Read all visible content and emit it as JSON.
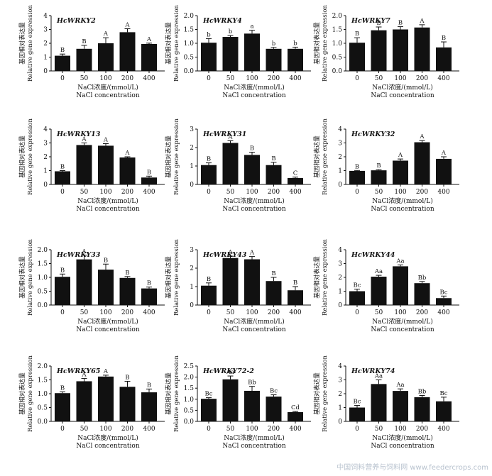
{
  "ylabel_cn": "基因相对表达量",
  "ylabel_en": "Relative gene expression",
  "xlabel_cn": "NaCl浓度/(mmol/L)",
  "xlabel_en": "NaCl concentration",
  "watermark": "中国饲料营养与饲料网 www.feedercrops.com",
  "colors": {
    "bar": "#111111",
    "axis": "#111111",
    "background": "#ffffff"
  },
  "chart_data": [
    {
      "type": "bar",
      "title": "HcWRKY2",
      "categories": [
        "0",
        "50",
        "100",
        "200",
        "400"
      ],
      "values": [
        1.1,
        1.6,
        2.0,
        2.8,
        1.95
      ],
      "errors": [
        0.12,
        0.25,
        0.4,
        0.25,
        0.06
      ],
      "labels": [
        "B",
        "B",
        "A",
        "A",
        "A"
      ],
      "ylim": [
        0,
        4
      ],
      "yticks": [
        0,
        1,
        2,
        3,
        4
      ]
    },
    {
      "type": "bar",
      "title": "HcWRKY4",
      "categories": [
        "0",
        "50",
        "100",
        "200",
        "400"
      ],
      "values": [
        1.02,
        1.23,
        1.35,
        0.8,
        0.8
      ],
      "errors": [
        0.15,
        0.05,
        0.12,
        0.05,
        0.06
      ],
      "labels": [
        "b",
        "b",
        "a",
        "b",
        "b"
      ],
      "ylim": [
        0,
        2
      ],
      "yticks": [
        0,
        0.5,
        1.0,
        1.5,
        2.0
      ]
    },
    {
      "type": "bar",
      "title": "HcWRKY7",
      "categories": [
        "0",
        "50",
        "100",
        "200",
        "400"
      ],
      "values": [
        1.02,
        1.47,
        1.5,
        1.57,
        0.85
      ],
      "errors": [
        0.18,
        0.12,
        0.1,
        0.1,
        0.2
      ],
      "labels": [
        "B",
        "B",
        "B",
        "A",
        "B"
      ],
      "ylim": [
        0,
        2
      ],
      "yticks": [
        0,
        0.5,
        1.0,
        1.5,
        2.0
      ]
    },
    {
      "type": "bar",
      "title": "HcWRKY13",
      "categories": [
        "0",
        "50",
        "100",
        "200",
        "400"
      ],
      "values": [
        0.95,
        2.85,
        2.8,
        1.95,
        0.5
      ],
      "errors": [
        0.05,
        0.15,
        0.15,
        0.05,
        0.1
      ],
      "labels": [
        "B",
        "A",
        "A",
        "A",
        "B"
      ],
      "ylim": [
        0,
        4
      ],
      "yticks": [
        0,
        1,
        2,
        3,
        4
      ]
    },
    {
      "type": "bar",
      "title": "HcWRKY31",
      "categories": [
        "0",
        "50",
        "100",
        "200",
        "400"
      ],
      "values": [
        1.05,
        2.25,
        1.6,
        1.05,
        0.35
      ],
      "errors": [
        0.12,
        0.12,
        0.15,
        0.15,
        0.05
      ],
      "labels": [
        "B",
        "A",
        "B",
        "B",
        "C"
      ],
      "ylim": [
        0,
        3
      ],
      "yticks": [
        0,
        1,
        2,
        3
      ]
    },
    {
      "type": "bar",
      "title": "HcWRKY32",
      "categories": [
        "0",
        "50",
        "100",
        "200",
        "400"
      ],
      "values": [
        0.98,
        1.02,
        1.72,
        3.05,
        1.85
      ],
      "errors": [
        0.03,
        0.05,
        0.12,
        0.12,
        0.15
      ],
      "labels": [
        "B",
        "B",
        "A",
        "A",
        "A"
      ],
      "ylim": [
        0,
        4
      ],
      "yticks": [
        0,
        1,
        2,
        3,
        4
      ]
    },
    {
      "type": "bar",
      "title": "HcWRKY33",
      "categories": [
        "0",
        "50",
        "100",
        "200",
        "400"
      ],
      "values": [
        1.02,
        1.65,
        1.28,
        0.98,
        0.6
      ],
      "errors": [
        0.1,
        0.15,
        0.2,
        0.05,
        0.05
      ],
      "labels": [
        "B",
        "A",
        "B",
        "B",
        "B"
      ],
      "ylim": [
        0,
        2
      ],
      "yticks": [
        0,
        0.5,
        1.0,
        1.5,
        2.0
      ]
    },
    {
      "type": "bar",
      "title": "HcWRKY43",
      "categories": [
        "0",
        "50",
        "100",
        "200",
        "400"
      ],
      "values": [
        1.05,
        2.55,
        2.48,
        1.3,
        0.8
      ],
      "errors": [
        0.15,
        0.1,
        0.15,
        0.2,
        0.2
      ],
      "labels": [
        "B",
        "A",
        "A",
        "B",
        "B"
      ],
      "ylim": [
        0,
        3
      ],
      "yticks": [
        0,
        1,
        2,
        3
      ]
    },
    {
      "type": "bar",
      "title": "HcWRKY44",
      "categories": [
        "0",
        "50",
        "100",
        "200",
        "400"
      ],
      "values": [
        1.0,
        2.05,
        2.8,
        1.58,
        0.5
      ],
      "errors": [
        0.15,
        0.1,
        0.1,
        0.12,
        0.15
      ],
      "labels": [
        "Bc",
        "Aa",
        "Aa",
        "Bb",
        "Bc"
      ],
      "ylim": [
        0,
        4
      ],
      "yticks": [
        0,
        1,
        2,
        3,
        4
      ]
    },
    {
      "type": "bar",
      "title": "HcWRKY65",
      "categories": [
        "0",
        "50",
        "100",
        "200",
        "400"
      ],
      "values": [
        1.02,
        1.45,
        1.62,
        1.25,
        1.05
      ],
      "errors": [
        0.05,
        0.1,
        0.05,
        0.2,
        0.12
      ],
      "labels": [
        "B",
        "A",
        "A",
        "B",
        "B"
      ],
      "ylim": [
        0,
        2
      ],
      "yticks": [
        0,
        0.5,
        1.0,
        1.5,
        2.0
      ]
    },
    {
      "type": "bar",
      "title": "HcWRKY72-2",
      "categories": [
        "0",
        "50",
        "100",
        "200",
        "400"
      ],
      "values": [
        1.02,
        1.9,
        1.38,
        1.12,
        0.42
      ],
      "errors": [
        0.05,
        0.15,
        0.2,
        0.08,
        0.03
      ],
      "labels": [
        "Bc",
        "Aa",
        "Bb",
        "Bc",
        "Cd"
      ],
      "ylim": [
        0,
        2.5
      ],
      "yticks": [
        0,
        0.5,
        1.0,
        1.5,
        2.0,
        2.5
      ]
    },
    {
      "type": "bar",
      "title": "HcWRKY74",
      "categories": [
        "0",
        "50",
        "100",
        "200",
        "400"
      ],
      "values": [
        1.0,
        2.7,
        2.2,
        1.75,
        1.45
      ],
      "errors": [
        0.15,
        0.3,
        0.15,
        0.12,
        0.3
      ],
      "labels": [
        "Bc",
        "Aa",
        "Aa",
        "Bb",
        "Bc"
      ],
      "ylim": [
        0,
        4
      ],
      "yticks": [
        0,
        1,
        2,
        3,
        4
      ]
    }
  ]
}
